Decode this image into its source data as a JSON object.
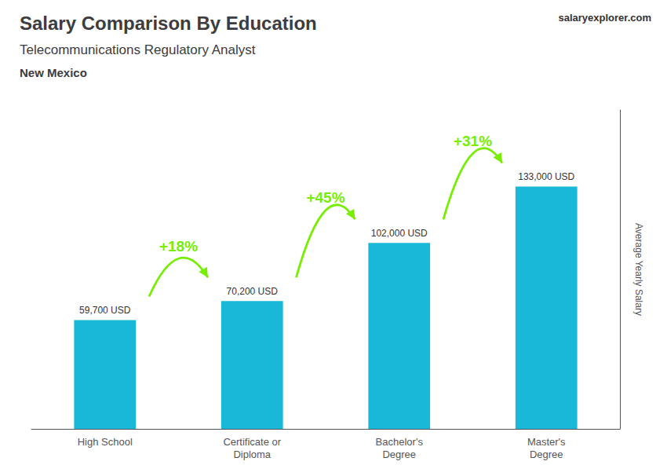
{
  "chart_data": {
    "type": "bar",
    "title": "Salary Comparison By Education",
    "subtitle": [
      "Telecommunications Regulatory Analyst",
      "New Mexico"
    ],
    "ylabel": "Average Yearly Salary",
    "categories": [
      "High School",
      "Certificate or\nDiploma",
      "Bachelor's\nDegree",
      "Master's\nDegree"
    ],
    "values": [
      59700,
      70200,
      102000,
      133000
    ],
    "value_labels": [
      "59,700 USD",
      "70,200 USD",
      "102,000 USD",
      "133,000 USD"
    ],
    "data_labels": true,
    "color": "#1ab8d8",
    "ylim": [
      0,
      175000
    ],
    "yticks": [],
    "tick_labels": "x",
    "grid": false,
    "annotations": [
      {
        "text": "+18%",
        "from": "High School",
        "to": "Certificate or\nDiploma",
        "color": "#77ee00"
      },
      {
        "text": "+45%",
        "from": "Certificate or\nDiploma",
        "to": "Bachelor's\nDegree",
        "color": "#77ee00"
      },
      {
        "text": "+31%",
        "from": "Bachelor's\nDegree",
        "to": "Master's\nDegree",
        "color": "#77ee00"
      },
      {
        "text": "salaryexplorer.com"
      }
    ]
  }
}
